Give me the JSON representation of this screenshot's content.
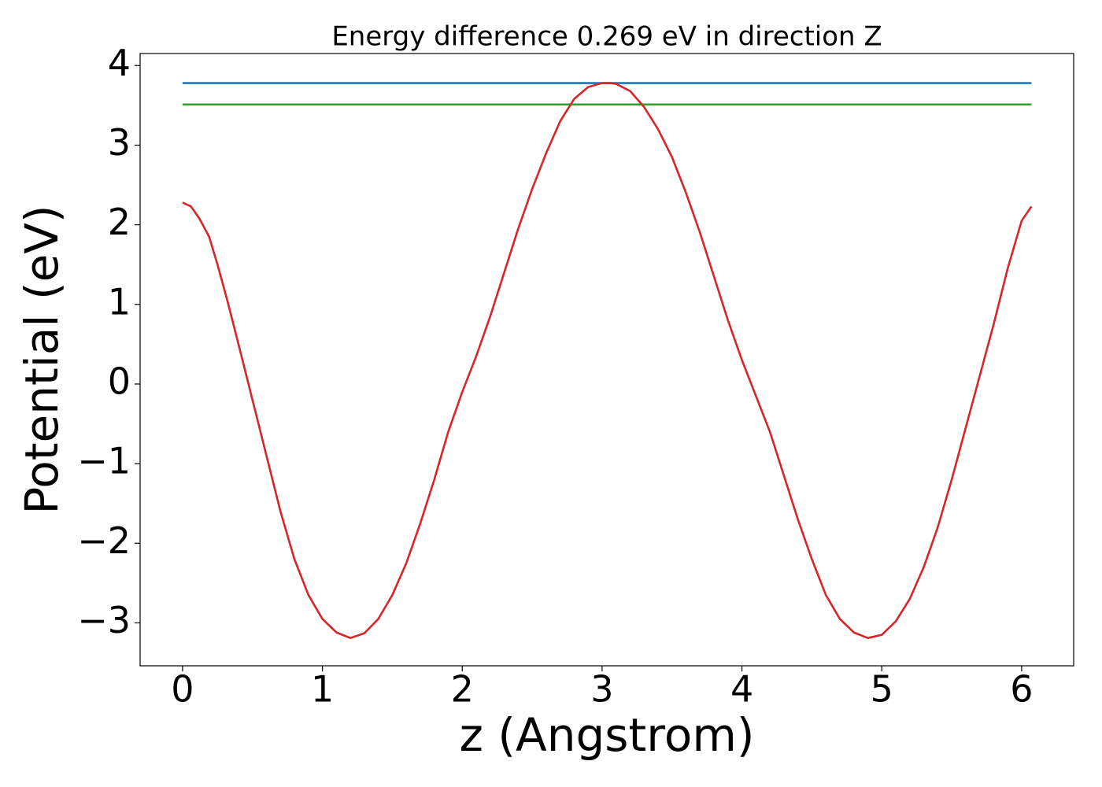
{
  "chart_data": {
    "type": "line",
    "title": "Energy difference 0.269 eV in direction Z",
    "xlabel": "z (Angstrom)",
    "ylabel": "Potential (eV)",
    "xlim": [
      -0.3035,
      6.372
    ],
    "ylim": [
      -3.539,
      4.151
    ],
    "xticks": [
      0,
      1,
      2,
      3,
      4,
      5,
      6
    ],
    "yticks": [
      {
        "value": -3,
        "label": "−3"
      },
      {
        "value": -2,
        "label": "−2"
      },
      {
        "value": -1,
        "label": "−1"
      },
      0,
      1,
      2,
      3,
      4
    ],
    "series": [
      {
        "color": "#1f77b4",
        "x": [
          0,
          6.07
        ],
        "values": [
          3.78,
          3.78
        ]
      },
      {
        "color": "#2ca02c",
        "x": [
          0,
          6.07
        ],
        "values": [
          3.511,
          3.511
        ]
      },
      {
        "color": "#d62728",
        "x": [
          0,
          0.06,
          0.12,
          0.19,
          0.25,
          0.32,
          0.4,
          0.5,
          0.6,
          0.7,
          0.8,
          0.9,
          1.0,
          1.1,
          1.2,
          1.3,
          1.4,
          1.5,
          1.6,
          1.7,
          1.8,
          1.9,
          2.0,
          2.1,
          2.2,
          2.3,
          2.4,
          2.5,
          2.6,
          2.7,
          2.8,
          2.9,
          3.0,
          3.06,
          3.1,
          3.2,
          3.3,
          3.4,
          3.5,
          3.6,
          3.7,
          3.8,
          3.9,
          4.0,
          4.1,
          4.2,
          4.3,
          4.4,
          4.5,
          4.6,
          4.7,
          4.8,
          4.9,
          5.0,
          5.1,
          5.2,
          5.3,
          5.4,
          5.5,
          5.6,
          5.7,
          5.8,
          5.9,
          6.0,
          6.07
        ],
        "values": [
          2.28,
          2.23,
          2.08,
          1.85,
          1.5,
          1.05,
          0.5,
          -0.2,
          -0.9,
          -1.6,
          -2.2,
          -2.65,
          -2.95,
          -3.12,
          -3.19,
          -3.13,
          -2.95,
          -2.65,
          -2.25,
          -1.75,
          -1.2,
          -0.6,
          -0.1,
          0.35,
          0.85,
          1.4,
          1.95,
          2.45,
          2.9,
          3.3,
          3.58,
          3.73,
          3.78,
          3.78,
          3.77,
          3.68,
          3.48,
          3.2,
          2.85,
          2.4,
          1.9,
          1.35,
          0.8,
          0.3,
          -0.15,
          -0.6,
          -1.15,
          -1.7,
          -2.2,
          -2.65,
          -2.95,
          -3.12,
          -3.19,
          -3.15,
          -2.98,
          -2.7,
          -2.3,
          -1.8,
          -1.2,
          -0.55,
          0.1,
          0.75,
          1.45,
          2.05,
          2.23
        ]
      }
    ]
  }
}
